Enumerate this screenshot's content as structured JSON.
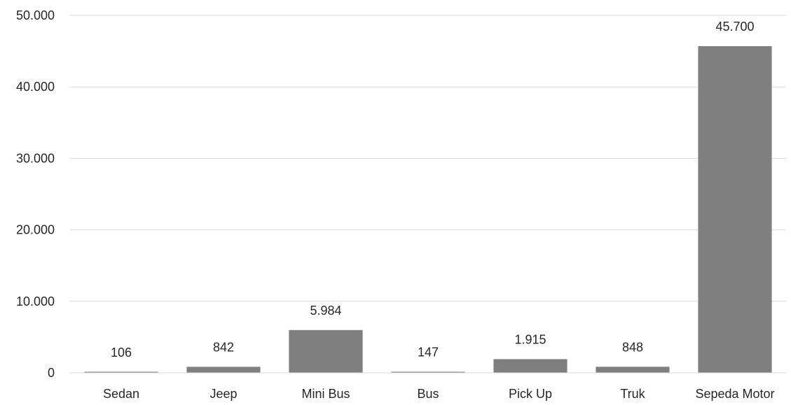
{
  "chart_data": {
    "type": "bar",
    "title": "",
    "xlabel": "",
    "ylabel": "",
    "categories": [
      "Sedan",
      "Jeep",
      "Mini Bus",
      "Bus",
      "Pick Up",
      "Truk",
      "Sepeda Motor"
    ],
    "values": [
      106,
      842,
      5984,
      147,
      1915,
      848,
      45700
    ],
    "data_labels": [
      "106",
      "842",
      "5.984",
      "147",
      "1.915",
      "848",
      "45.700"
    ],
    "ylim": [
      0,
      50000
    ],
    "yticks": [
      0,
      10000,
      20000,
      30000,
      40000,
      50000
    ],
    "ytick_labels": [
      "0",
      "10.000",
      "20.000",
      "30.000",
      "40.000",
      "50.000"
    ],
    "grid": true,
    "legend": "none",
    "bar_color": "#7f7f7f"
  }
}
